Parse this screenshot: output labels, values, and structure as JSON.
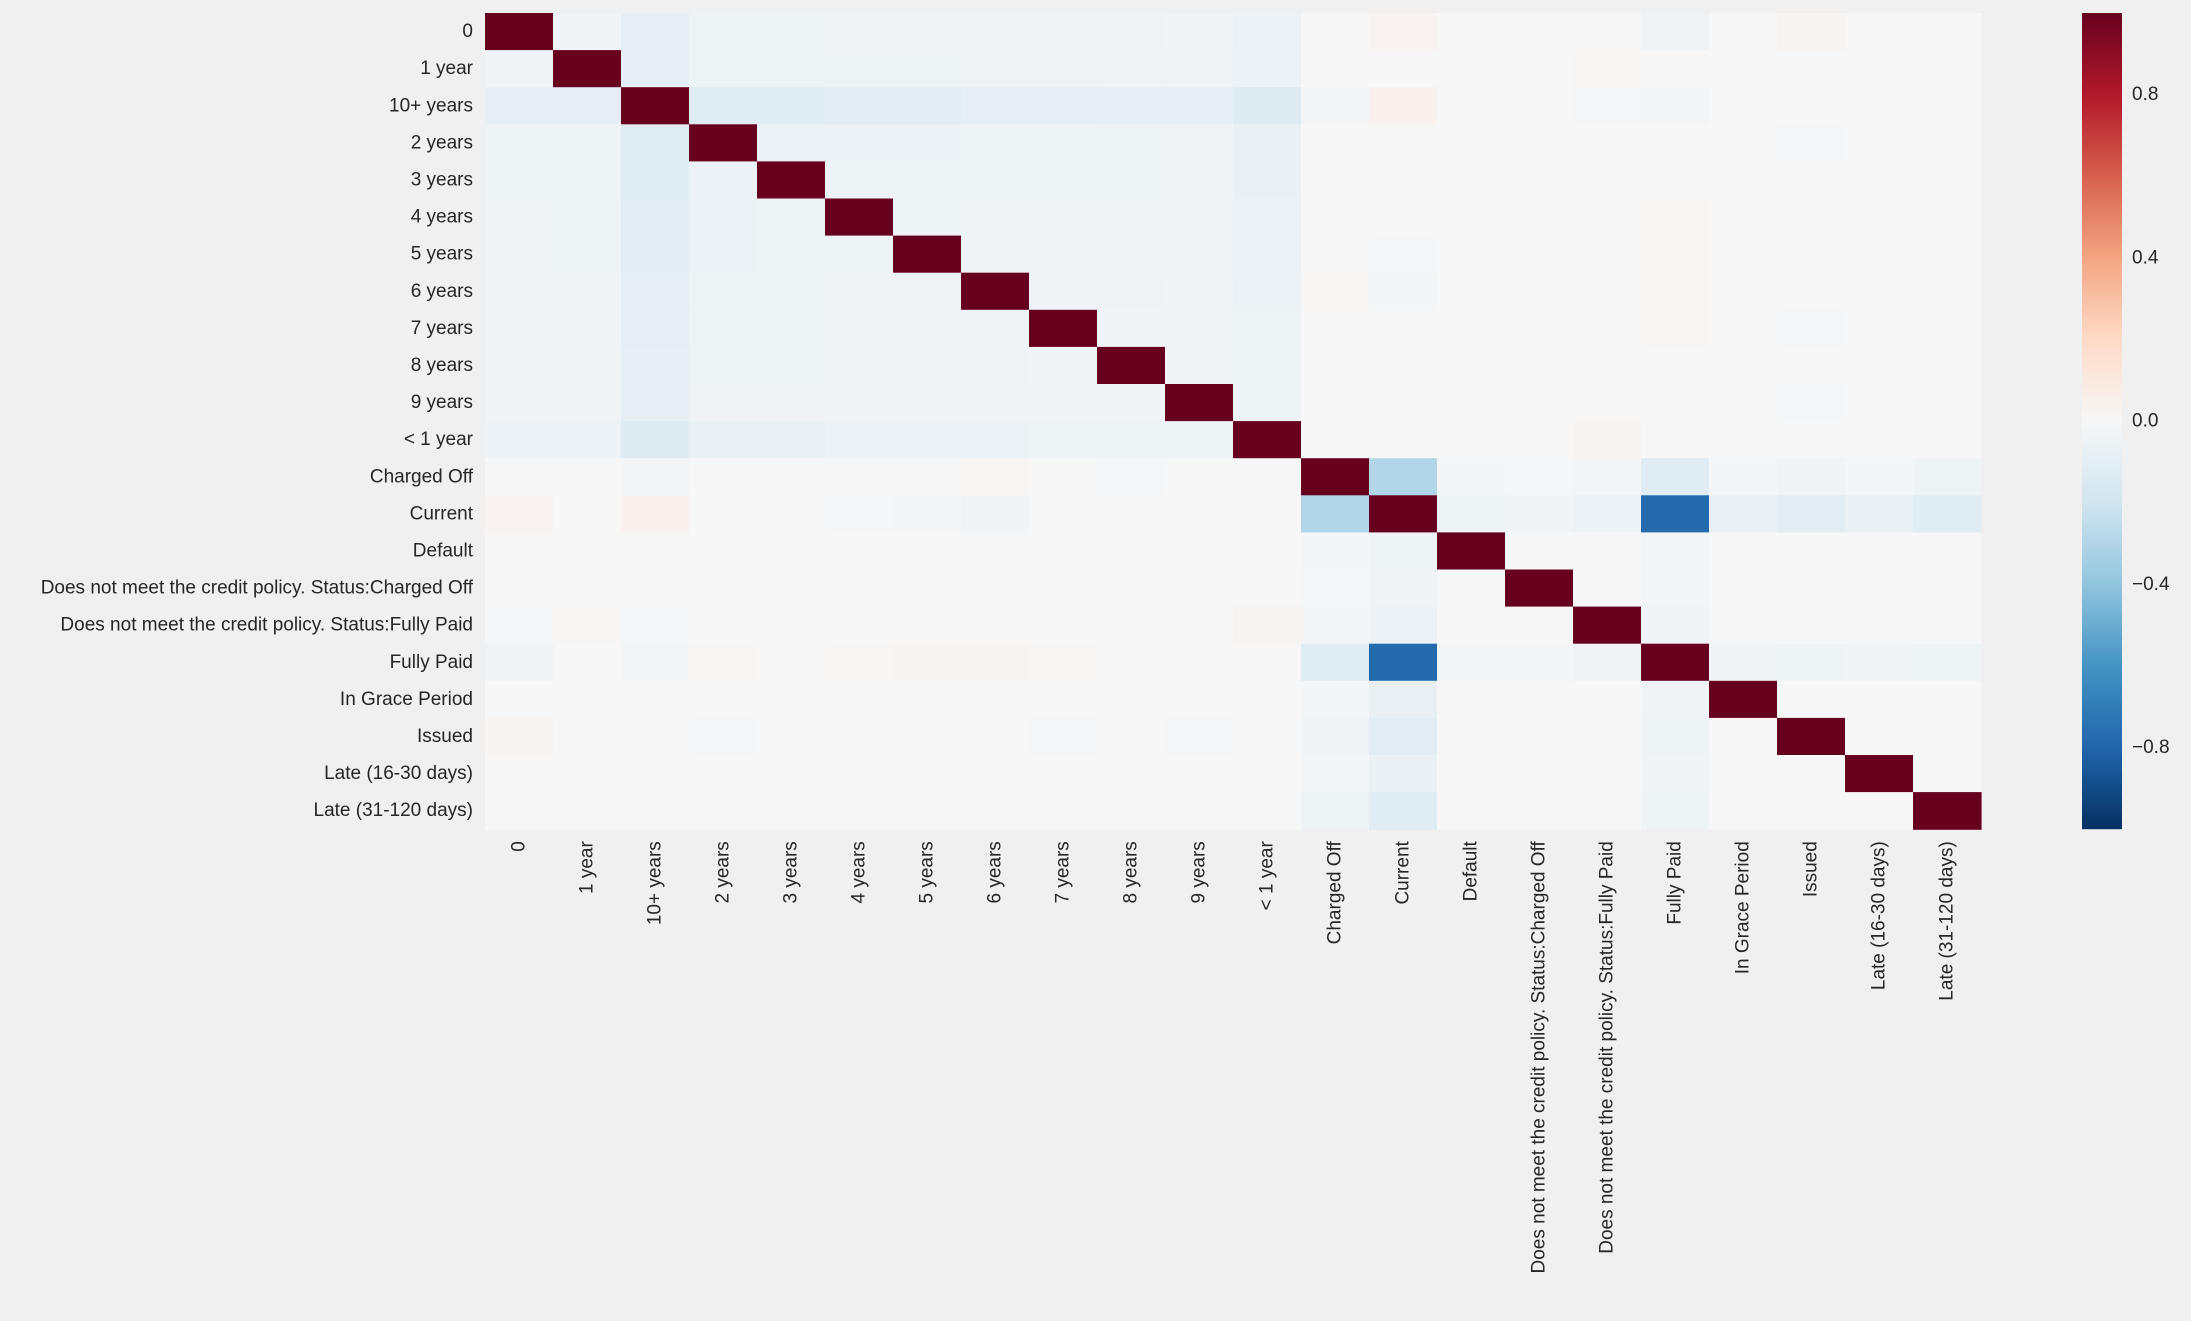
{
  "chart_data": {
    "type": "heatmap",
    "title": "",
    "xlabel": "",
    "ylabel": "",
    "labels": [
      "0",
      "1 year",
      "10+ years",
      "2 years",
      "3 years",
      "4 years",
      "5 years",
      "6 years",
      "7 years",
      "8 years",
      "9 years",
      "< 1 year",
      "Charged Off",
      "Current",
      "Default",
      "Does not meet the credit policy. Status:Charged Off",
      "Does not meet the credit policy. Status:Fully Paid",
      "Fully Paid",
      "In Grace Period",
      "Issued",
      "Late (16-30 days)",
      "Late (31-120 days)"
    ],
    "values": [
      [
        1.0,
        -0.03,
        -0.1,
        -0.05,
        -0.05,
        -0.04,
        -0.04,
        -0.04,
        -0.04,
        -0.04,
        -0.03,
        -0.06,
        0.0,
        0.03,
        0.0,
        0.0,
        0.0,
        -0.04,
        0.0,
        0.02,
        0.0,
        0.0
      ],
      [
        -0.03,
        1.0,
        -0.1,
        -0.05,
        -0.05,
        -0.05,
        -0.05,
        -0.04,
        -0.04,
        -0.04,
        -0.04,
        -0.06,
        0.0,
        0.0,
        0.0,
        0.0,
        0.01,
        0.0,
        0.0,
        0.0,
        0.0,
        0.0
      ],
      [
        -0.1,
        -0.1,
        1.0,
        -0.12,
        -0.12,
        -0.11,
        -0.11,
        -0.1,
        -0.1,
        -0.09,
        -0.09,
        -0.13,
        -0.02,
        0.04,
        0.0,
        0.0,
        -0.01,
        -0.02,
        0.0,
        0.0,
        0.0,
        0.0
      ],
      [
        -0.05,
        -0.05,
        -0.12,
        1.0,
        -0.06,
        -0.06,
        -0.06,
        -0.05,
        -0.05,
        -0.05,
        -0.04,
        -0.07,
        0.0,
        0.0,
        0.0,
        0.0,
        0.0,
        0.0,
        0.0,
        -0.01,
        0.0,
        0.0
      ],
      [
        -0.05,
        -0.05,
        -0.12,
        -0.06,
        1.0,
        -0.05,
        -0.05,
        -0.05,
        -0.05,
        -0.05,
        -0.04,
        -0.07,
        0.0,
        0.0,
        0.0,
        0.0,
        0.0,
        0.0,
        0.0,
        0.0,
        0.0,
        0.0
      ],
      [
        -0.04,
        -0.05,
        -0.11,
        -0.06,
        -0.05,
        1.0,
        -0.05,
        -0.04,
        -0.04,
        -0.04,
        -0.04,
        -0.06,
        0.0,
        0.0,
        0.0,
        0.0,
        0.0,
        0.01,
        0.0,
        0.0,
        0.0,
        0.0
      ],
      [
        -0.04,
        -0.05,
        -0.11,
        -0.06,
        -0.05,
        -0.05,
        1.0,
        -0.04,
        -0.04,
        -0.04,
        -0.04,
        -0.06,
        0.0,
        -0.01,
        0.0,
        0.0,
        0.0,
        0.01,
        0.0,
        0.0,
        0.0,
        0.0
      ],
      [
        -0.04,
        -0.04,
        -0.1,
        -0.05,
        -0.05,
        -0.04,
        -0.04,
        1.0,
        -0.04,
        -0.04,
        -0.03,
        -0.06,
        0.01,
        -0.02,
        0.0,
        0.0,
        0.0,
        0.01,
        0.0,
        0.0,
        0.0,
        0.0
      ],
      [
        -0.04,
        -0.04,
        -0.1,
        -0.05,
        -0.05,
        -0.04,
        -0.04,
        -0.04,
        1.0,
        -0.03,
        -0.03,
        -0.05,
        0.0,
        0.0,
        0.0,
        0.0,
        0.0,
        0.01,
        0.0,
        -0.01,
        0.0,
        0.0
      ],
      [
        -0.04,
        -0.04,
        -0.09,
        -0.05,
        -0.05,
        -0.04,
        -0.04,
        -0.04,
        -0.03,
        1.0,
        -0.03,
        -0.05,
        0.0,
        0.0,
        0.0,
        0.0,
        0.0,
        0.0,
        0.0,
        0.0,
        0.0,
        0.0
      ],
      [
        -0.03,
        -0.04,
        -0.09,
        -0.04,
        -0.04,
        -0.04,
        -0.04,
        -0.03,
        -0.03,
        -0.03,
        1.0,
        -0.05,
        0.0,
        0.0,
        0.0,
        0.0,
        0.0,
        0.0,
        0.0,
        -0.01,
        0.0,
        0.0
      ],
      [
        -0.06,
        -0.06,
        -0.13,
        -0.07,
        -0.07,
        -0.06,
        -0.06,
        -0.06,
        -0.05,
        -0.05,
        -0.05,
        1.0,
        0.0,
        0.0,
        0.0,
        0.0,
        0.02,
        0.0,
        0.0,
        0.0,
        0.0,
        0.0
      ],
      [
        0.0,
        0.0,
        -0.02,
        0.0,
        0.0,
        0.0,
        0.0,
        0.01,
        0.0,
        -0.01,
        0.0,
        0.0,
        1.0,
        -0.3,
        -0.02,
        -0.01,
        -0.02,
        -0.12,
        -0.02,
        -0.03,
        -0.02,
        -0.05
      ],
      [
        0.03,
        0.0,
        0.04,
        0.0,
        0.0,
        -0.01,
        -0.02,
        -0.03,
        0.0,
        0.0,
        0.0,
        0.0,
        -0.3,
        1.0,
        -0.05,
        -0.03,
        -0.06,
        -0.78,
        -0.08,
        -0.11,
        -0.07,
        -0.12
      ],
      [
        0.0,
        0.0,
        0.0,
        0.0,
        0.0,
        0.0,
        0.0,
        0.0,
        0.0,
        0.0,
        0.0,
        0.0,
        -0.02,
        -0.05,
        1.0,
        0.0,
        0.0,
        -0.02,
        0.0,
        0.0,
        0.0,
        0.0
      ],
      [
        0.0,
        0.0,
        0.0,
        0.0,
        0.0,
        0.0,
        0.0,
        0.0,
        0.0,
        0.0,
        0.0,
        0.0,
        -0.01,
        -0.03,
        0.0,
        1.0,
        0.0,
        -0.02,
        0.0,
        0.0,
        0.0,
        0.0
      ],
      [
        -0.01,
        0.01,
        -0.01,
        0.0,
        0.0,
        0.0,
        0.0,
        0.0,
        0.0,
        0.0,
        0.0,
        0.02,
        -0.02,
        -0.06,
        0.0,
        0.0,
        1.0,
        -0.03,
        0.0,
        0.0,
        0.0,
        0.0
      ],
      [
        -0.04,
        0.0,
        -0.02,
        0.01,
        0.0,
        0.01,
        0.02,
        0.02,
        0.01,
        0.0,
        0.0,
        0.0,
        -0.12,
        -0.78,
        -0.02,
        -0.02,
        -0.03,
        1.0,
        -0.03,
        -0.05,
        -0.03,
        -0.05
      ],
      [
        0.0,
        0.0,
        0.0,
        0.0,
        0.0,
        0.0,
        0.0,
        0.0,
        0.0,
        0.0,
        0.0,
        0.0,
        -0.02,
        -0.08,
        0.0,
        0.0,
        0.0,
        -0.03,
        1.0,
        0.0,
        0.0,
        0.0
      ],
      [
        0.02,
        0.0,
        0.0,
        -0.01,
        0.0,
        0.0,
        0.0,
        0.0,
        -0.01,
        0.0,
        -0.01,
        0.0,
        -0.03,
        -0.11,
        0.0,
        0.0,
        0.0,
        -0.05,
        0.0,
        1.0,
        0.0,
        0.0
      ],
      [
        0.0,
        0.0,
        0.0,
        0.0,
        0.0,
        0.0,
        0.0,
        0.0,
        0.0,
        0.0,
        0.0,
        0.0,
        -0.02,
        -0.07,
        0.0,
        0.0,
        0.0,
        -0.03,
        0.0,
        0.0,
        1.0,
        0.0
      ],
      [
        0.0,
        0.0,
        0.0,
        0.0,
        0.0,
        0.0,
        0.0,
        0.0,
        0.0,
        0.0,
        0.0,
        0.0,
        -0.05,
        -0.12,
        0.0,
        0.0,
        0.0,
        -0.05,
        0.0,
        0.0,
        0.0,
        1.0
      ]
    ],
    "vmin": -1.0,
    "vmax": 1.0,
    "colormap": "RdBu_r",
    "colorbar": {
      "ticks": [
        0.8,
        0.4,
        0.0,
        -0.4,
        -0.8
      ],
      "tick_labels": [
        "0.8",
        "0.4",
        "0.0",
        "−0.4",
        "−0.8"
      ]
    },
    "grid": false,
    "legend": "colorbar-right"
  },
  "colors": {
    "background": "#f0f0f0",
    "text": "#262626",
    "colormap_stops": [
      "#053061",
      "#2166ac",
      "#4393c3",
      "#92c5de",
      "#d1e5f0",
      "#f7f7f7",
      "#fddbc7",
      "#f4a582",
      "#d6604d",
      "#b2182b",
      "#67001f"
    ]
  }
}
